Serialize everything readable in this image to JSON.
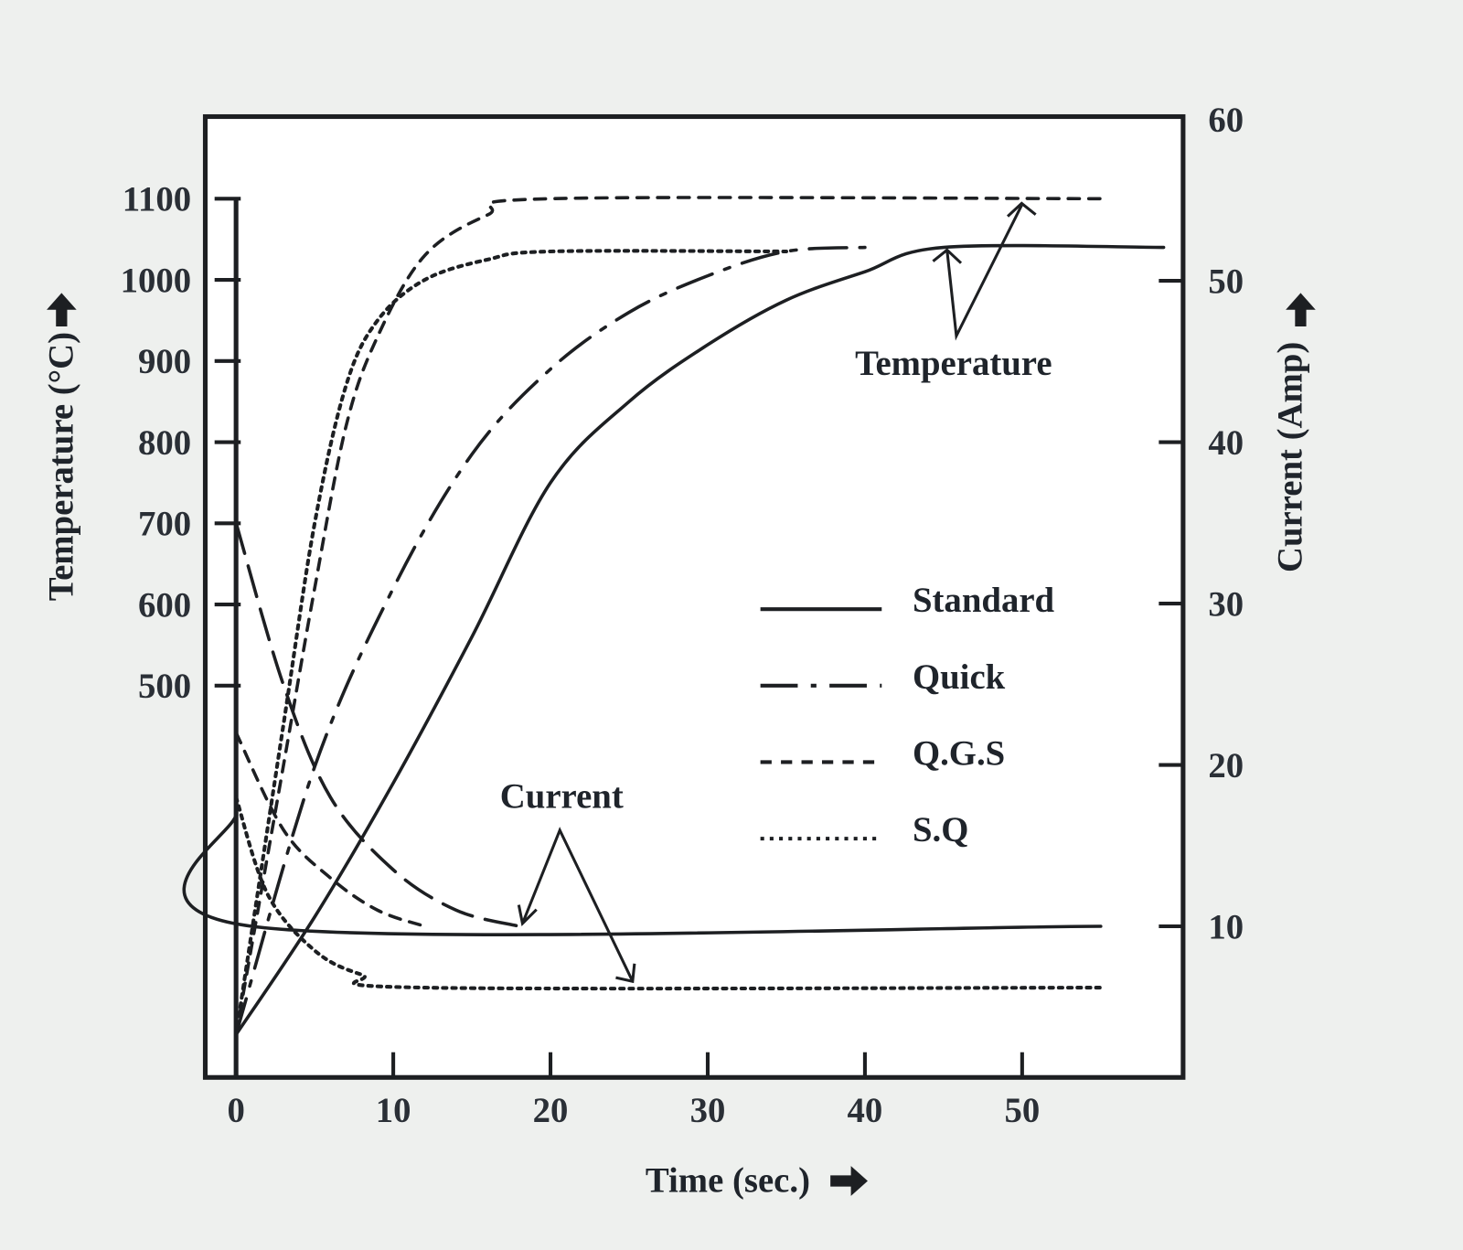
{
  "chart_data": {
    "type": "line",
    "title": "",
    "xlabel": "Time (sec.)",
    "ylabel_left": "Temperature (°C)",
    "ylabel_right": "Current (Amp)",
    "xlim": [
      0,
      60
    ],
    "ylim_left": [
      0,
      1100
    ],
    "ylim_right": [
      0,
      60
    ],
    "x_ticks": [
      0,
      10,
      20,
      30,
      40,
      50
    ],
    "y_left_ticks": [
      500,
      600,
      700,
      800,
      900,
      1000,
      1100
    ],
    "y_right_ticks": [
      10,
      20,
      30,
      40,
      50,
      60
    ],
    "grid": false,
    "legend": {
      "placement": "center-right",
      "entries": [
        "Standard",
        "Quick",
        "Q.G.S",
        "S.Q"
      ]
    },
    "annotations": {
      "temperature": "Temperature",
      "current": "Current"
    },
    "series": [
      {
        "name": "Standard",
        "style": "solid",
        "quantity": "temperature",
        "x": [
          0,
          5,
          10,
          15,
          20,
          25,
          30,
          35,
          40,
          45,
          59
        ],
        "y": [
          70,
          215,
          380,
          560,
          750,
          850,
          920,
          975,
          1010,
          1040,
          1040
        ]
      },
      {
        "name": "Quick",
        "style": "dashdot",
        "quantity": "temperature",
        "x": [
          0,
          5,
          10,
          15,
          20,
          25,
          30,
          35,
          40
        ],
        "y": [
          70,
          400,
          620,
          785,
          890,
          960,
          1005,
          1035,
          1040
        ]
      },
      {
        "name": "Q.G.S",
        "style": "dashed",
        "quantity": "temperature",
        "x": [
          0,
          3,
          5,
          7,
          9,
          12,
          16,
          20,
          55
        ],
        "y": [
          70,
          400,
          620,
          820,
          930,
          1030,
          1080,
          1100,
          1100
        ]
      },
      {
        "name": "S.Q",
        "style": "dotted",
        "quantity": "temperature",
        "x": [
          0,
          3,
          5,
          7,
          9,
          12,
          16,
          20,
          35
        ],
        "y": [
          70,
          450,
          700,
          870,
          950,
          1000,
          1025,
          1035,
          1035
        ]
      },
      {
        "name": "Standard",
        "style": "solid",
        "quantity": "current",
        "x": [
          0,
          1,
          55
        ],
        "y": [
          17,
          10,
          10
        ]
      },
      {
        "name": "Quick",
        "style": "longdash",
        "quantity": "current",
        "x": [
          0,
          3,
          6,
          10,
          14,
          18
        ],
        "y": [
          35,
          25,
          18,
          13.5,
          11,
          10
        ]
      },
      {
        "name": "Q.G.S",
        "style": "dashed",
        "quantity": "current",
        "x": [
          0,
          3,
          6,
          9,
          12
        ],
        "y": [
          22,
          16,
          13,
          11,
          10
        ]
      },
      {
        "name": "S.Q",
        "style": "dotted",
        "quantity": "current",
        "x": [
          0,
          2,
          5,
          8,
          12,
          55
        ],
        "y": [
          18,
          12,
          8.5,
          7,
          6.2,
          6.2
        ]
      }
    ]
  }
}
